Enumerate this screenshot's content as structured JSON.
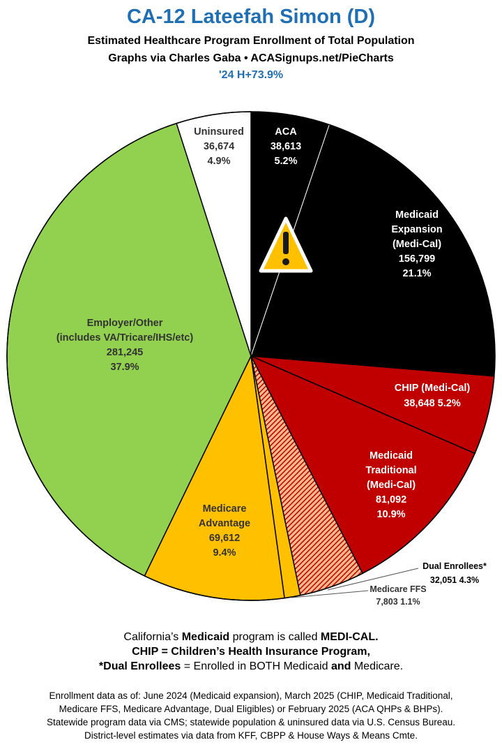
{
  "header": {
    "title": "CA-12 Lateefah Simon (D)",
    "subtitle": "Estimated Healthcare Program Enrollment of Total Population",
    "credit": "Graphs via Charles Gaba  •  ACASignups.net/PieCharts",
    "result": "'24 H+73.9%"
  },
  "chart_data": {
    "type": "pie",
    "slices": [
      {
        "key": "aca",
        "lines": [
          "ACA",
          "38,613",
          "5.2%"
        ],
        "value": 38613,
        "percent": 5.2,
        "color": "#000000",
        "text_color": "#ffffff"
      },
      {
        "key": "medicaid-expansion",
        "lines": [
          "Medicaid",
          "Expansion",
          "(Medi-Cal)",
          "156,799",
          "21.1%"
        ],
        "value": 156799,
        "percent": 21.1,
        "color": "#000000",
        "text_color": "#ffffff"
      },
      {
        "key": "chip",
        "lines": [
          "CHIP (Medi-Cal)",
          "38,648 5.2%"
        ],
        "value": 38648,
        "percent": 5.2,
        "color": "#c00000",
        "text_color": "#ffffff"
      },
      {
        "key": "medicaid-traditional",
        "lines": [
          "Medicaid",
          "Traditional",
          "(Medi-Cal)",
          "81,092",
          "10.9%"
        ],
        "value": 81092,
        "percent": 10.9,
        "color": "#c00000",
        "text_color": "#ffffff"
      },
      {
        "key": "dual-enrollees",
        "lines": [
          "Dual Enrollees*",
          "32,051 4.3%"
        ],
        "value": 32051,
        "percent": 4.3,
        "color": "#c00000",
        "pattern": "hatch",
        "text_color": "#000000"
      },
      {
        "key": "medicare-ffs",
        "lines": [
          "Medicare FFS",
          "7,803 1.1%"
        ],
        "value": 7803,
        "percent": 1.1,
        "color": "#ffc000",
        "text_color": "#333333"
      },
      {
        "key": "medicare-advantage",
        "lines": [
          "Medicare",
          "Advantage",
          "69,612",
          "9.4%"
        ],
        "value": 69612,
        "percent": 9.4,
        "color": "#ffc000",
        "text_color": "#333333"
      },
      {
        "key": "employer-other",
        "lines": [
          "Employer/Other",
          "(includes VA/Tricare/IHS/etc)",
          "281,245",
          "37.9%"
        ],
        "value": 281245,
        "percent": 37.9,
        "color": "#92d050",
        "text_color": "#333333"
      },
      {
        "key": "uninsured",
        "lines": [
          "Uninsured",
          "36,674",
          "4.9%"
        ],
        "value": 36674,
        "percent": 4.9,
        "color": "#ffffff",
        "text_color": "#333333"
      }
    ],
    "warning_icon": "warning-triangle-icon"
  },
  "notes": {
    "line1_pre": "California’s ",
    "line1_bold1": "Medicaid",
    "line1_mid": " program is called ",
    "line1_bold2": "MEDI-CAL.",
    "line2": "CHIP = Children’s Health Insurance Program,",
    "line3_bold1": "*Dual Enrollees",
    "line3_mid": " = Enrolled in BOTH Medicaid ",
    "line3_bold2": "and",
    "line3_end": " Medicare."
  },
  "footer": {
    "line1": "Enrollment data as of: June 2024 (Medicaid expansion), March 2025 (CHIP, Medicaid Traditional,",
    "line2": "Medicare FFS, Medicare Advantage, Dual Eligibles) or February 2025 (ACA QHPs & BHPs).",
    "line3": "Statewide program data via CMS; statewide population & uninsured data via U.S. Census Bureau.",
    "line4": "District-level estimates via data from KFF, CBPP & House Ways & Means Cmte."
  }
}
